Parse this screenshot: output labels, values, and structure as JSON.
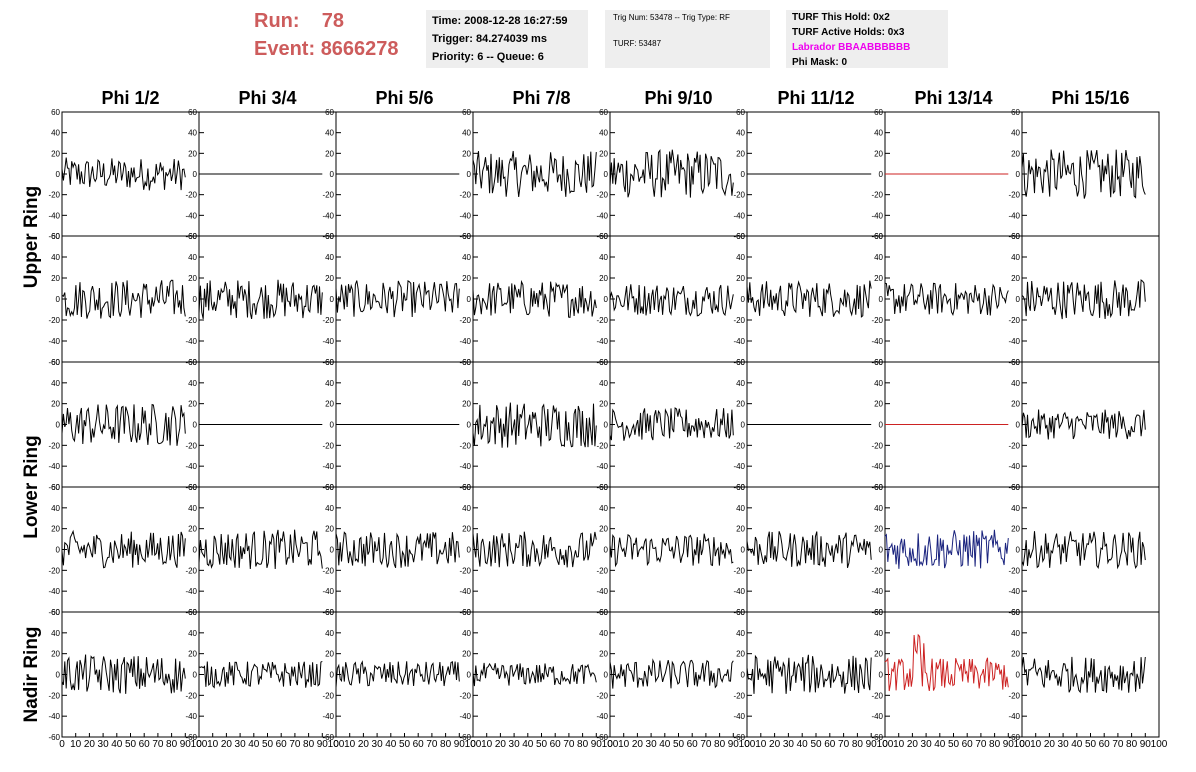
{
  "header": {
    "run_label": "Run:",
    "run_value": "78",
    "event_label": "Event:",
    "event_value": "8666278",
    "time": "Time: 2008-12-28 16:27:59",
    "trigger": "Trigger: 84.274039 ms",
    "priority": "Priority: 6 -- Queue: 6",
    "trig_num": "Trig Num: 53478 -- Trig Type: RF",
    "turf": "TURF: 53487",
    "turf_hold": "TURF This Hold: 0x2",
    "turf_active": "TURF Active Holds: 0x3",
    "labrador": "Labrador BBAABBBBBB",
    "phi_mask": "Phi Mask: 0"
  },
  "colors": {
    "run_text": "#cd5c5c",
    "labrador_text": "#ee00ee",
    "trace_default": "#000000",
    "trace_red": "#cc2222",
    "trace_blue": "#1a237e"
  },
  "chart_data": {
    "type": "line",
    "columns": [
      "Phi 1/2",
      "Phi 3/4",
      "Phi 5/6",
      "Phi 7/8",
      "Phi 9/10",
      "Phi 11/12",
      "Phi 13/14",
      "Phi 15/16"
    ],
    "ring_labels": [
      "Upper Ring",
      "Lower Ring",
      "Nadir Ring"
    ],
    "xlim": [
      0,
      100
    ],
    "ylim": [
      -60,
      60
    ],
    "x_ticks": [
      "0",
      "10",
      "20",
      "30",
      "40",
      "50",
      "60",
      "70",
      "80",
      "90",
      "100"
    ],
    "y_ticks": [
      "60",
      "40",
      "20",
      "0",
      "-20",
      "-40",
      "-60"
    ],
    "samples_per_trace": 90,
    "rows": [
      {
        "amp": [
          10,
          0,
          0,
          14,
          15,
          0,
          0,
          15
        ],
        "color": [
          "black",
          "black",
          "black",
          "black",
          "black",
          "black",
          "red",
          "black"
        ]
      },
      {
        "amp": [
          12,
          12,
          11,
          11,
          10,
          11,
          10,
          12
        ],
        "color": [
          "black",
          "black",
          "black",
          "black",
          "black",
          "black",
          "black",
          "black"
        ]
      },
      {
        "amp": [
          13,
          0,
          0,
          14,
          10,
          0,
          0,
          9
        ],
        "color": [
          "black",
          "black",
          "black",
          "black",
          "black",
          "black",
          "red",
          "black"
        ]
      },
      {
        "amp": [
          11,
          12,
          11,
          11,
          10,
          11,
          12,
          11
        ],
        "color": [
          "black",
          "black",
          "black",
          "black",
          "black",
          "black",
          "blue",
          "black"
        ]
      },
      {
        "amp": [
          12,
          8,
          8,
          7,
          9,
          12,
          10,
          11
        ],
        "color": [
          "black",
          "black",
          "black",
          "black",
          "black",
          "black",
          "red",
          "black"
        ]
      }
    ]
  }
}
